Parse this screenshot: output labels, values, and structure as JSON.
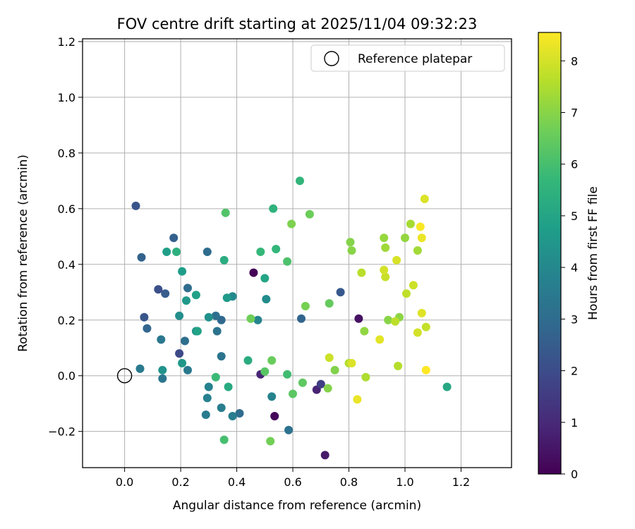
{
  "chart_data": {
    "type": "scatter",
    "title": "FOV centre drift starting at 2025/11/04 09:32:23",
    "xlabel": "Angular distance from reference (arcmin)",
    "ylabel": "Rotation from reference (arcmin)",
    "xlim": [
      -0.15,
      1.38
    ],
    "ylim": [
      -0.33,
      1.21
    ],
    "xticks": [
      "0.0",
      "0.2",
      "0.4",
      "0.6",
      "0.8",
      "1.0",
      "1.2"
    ],
    "yticks": [
      "−0.2",
      "0.0",
      "0.2",
      "0.4",
      "0.6",
      "0.8",
      "1.0",
      "1.2"
    ],
    "grid": true,
    "legend": {
      "placement": "top-right",
      "entries": [
        "Reference platepar"
      ]
    },
    "reference_point": {
      "x": 0.0,
      "y": 0.0
    },
    "colorbar": {
      "label": "Hours from first FF file",
      "range": [
        0,
        8.55
      ],
      "ticks": [
        "0",
        "1",
        "2",
        "3",
        "4",
        "5",
        "6",
        "7",
        "8"
      ],
      "colormap": "viridis",
      "colors": [
        "#440154",
        "#482878",
        "#3e4989",
        "#31688e",
        "#26828e",
        "#1f9e89",
        "#35b779",
        "#6ece58",
        "#b5de2b",
        "#fde725"
      ]
    },
    "points": [
      {
        "x": 0.46,
        "y": 0.37,
        "h": 0.05
      },
      {
        "x": 0.535,
        "y": -0.145,
        "h": 0.15
      },
      {
        "x": 0.715,
        "y": -0.285,
        "h": 0.6
      },
      {
        "x": 0.685,
        "y": -0.05,
        "h": 0.85
      },
      {
        "x": 0.835,
        "y": 0.205,
        "h": 0.4
      },
      {
        "x": 0.485,
        "y": 0.005,
        "h": 0.9
      },
      {
        "x": 0.7,
        "y": -0.03,
        "h": 1.6
      },
      {
        "x": 0.195,
        "y": 0.08,
        "h": 1.9
      },
      {
        "x": 0.12,
        "y": 0.31,
        "h": 2.1
      },
      {
        "x": 0.04,
        "y": 0.61,
        "h": 2.25
      },
      {
        "x": 0.07,
        "y": 0.21,
        "h": 2.3
      },
      {
        "x": 0.77,
        "y": 0.3,
        "h": 2.4
      },
      {
        "x": 0.145,
        "y": 0.295,
        "h": 2.5
      },
      {
        "x": 0.175,
        "y": 0.495,
        "h": 2.6
      },
      {
        "x": 0.06,
        "y": 0.425,
        "h": 2.7
      },
      {
        "x": 0.63,
        "y": 0.205,
        "h": 2.75
      },
      {
        "x": 0.08,
        "y": 0.17,
        "h": 2.8
      },
      {
        "x": 0.345,
        "y": 0.2,
        "h": 2.85
      },
      {
        "x": 0.41,
        "y": -0.135,
        "h": 3.0
      },
      {
        "x": 0.295,
        "y": 0.445,
        "h": 3.0
      },
      {
        "x": 0.225,
        "y": 0.315,
        "h": 3.05
      },
      {
        "x": 0.325,
        "y": 0.215,
        "h": 3.1
      },
      {
        "x": 0.215,
        "y": 0.125,
        "h": 3.1
      },
      {
        "x": 0.585,
        "y": -0.195,
        "h": 3.2
      },
      {
        "x": 0.345,
        "y": 0.07,
        "h": 3.3
      },
      {
        "x": 0.33,
        "y": 0.16,
        "h": 3.3
      },
      {
        "x": 0.135,
        "y": -0.01,
        "h": 3.35
      },
      {
        "x": 0.13,
        "y": 0.13,
        "h": 3.4
      },
      {
        "x": 0.225,
        "y": 0.02,
        "h": 3.45
      },
      {
        "x": 0.055,
        "y": 0.025,
        "h": 3.5
      },
      {
        "x": 0.29,
        "y": -0.14,
        "h": 3.55
      },
      {
        "x": 0.385,
        "y": -0.145,
        "h": 3.6
      },
      {
        "x": 0.345,
        "y": -0.115,
        "h": 3.65
      },
      {
        "x": 0.295,
        "y": -0.08,
        "h": 3.75
      },
      {
        "x": 0.3,
        "y": -0.04,
        "h": 3.8
      },
      {
        "x": 0.525,
        "y": -0.075,
        "h": 3.85
      },
      {
        "x": 0.475,
        "y": 0.2,
        "h": 3.9
      },
      {
        "x": 0.385,
        "y": 0.285,
        "h": 4.05
      },
      {
        "x": 0.505,
        "y": 0.275,
        "h": 4.15
      },
      {
        "x": 0.195,
        "y": 0.215,
        "h": 4.2
      },
      {
        "x": 0.3,
        "y": 0.21,
        "h": 4.3
      },
      {
        "x": 0.255,
        "y": 0.16,
        "h": 4.35
      },
      {
        "x": 0.135,
        "y": 0.02,
        "h": 4.4
      },
      {
        "x": 0.205,
        "y": 0.045,
        "h": 4.5
      },
      {
        "x": 0.22,
        "y": 0.27,
        "h": 4.55
      },
      {
        "x": 0.365,
        "y": 0.28,
        "h": 4.6
      },
      {
        "x": 0.205,
        "y": 0.375,
        "h": 4.7
      },
      {
        "x": 0.15,
        "y": 0.445,
        "h": 4.8
      },
      {
        "x": 0.255,
        "y": 0.29,
        "h": 4.85
      },
      {
        "x": 0.26,
        "y": 0.16,
        "h": 4.9
      },
      {
        "x": 0.5,
        "y": 0.35,
        "h": 5.0
      },
      {
        "x": 1.15,
        "y": -0.04,
        "h": 5.1
      },
      {
        "x": 0.37,
        "y": -0.04,
        "h": 5.2
      },
      {
        "x": 0.44,
        "y": 0.055,
        "h": 5.25
      },
      {
        "x": 0.355,
        "y": 0.415,
        "h": 5.3
      },
      {
        "x": 0.185,
        "y": 0.445,
        "h": 5.4
      },
      {
        "x": 0.53,
        "y": 0.6,
        "h": 5.5
      },
      {
        "x": 0.625,
        "y": 0.7,
        "h": 5.6
      },
      {
        "x": 0.54,
        "y": 0.455,
        "h": 5.65
      },
      {
        "x": 0.485,
        "y": 0.445,
        "h": 5.7
      },
      {
        "x": 0.325,
        "y": -0.005,
        "h": 5.8
      },
      {
        "x": 0.58,
        "y": 0.005,
        "h": 5.9
      },
      {
        "x": 0.355,
        "y": -0.23,
        "h": 6.0
      },
      {
        "x": 0.58,
        "y": 0.41,
        "h": 6.1
      },
      {
        "x": 0.36,
        "y": 0.585,
        "h": 6.2
      },
      {
        "x": 0.5,
        "y": 0.015,
        "h": 6.3
      },
      {
        "x": 0.6,
        "y": -0.065,
        "h": 6.35
      },
      {
        "x": 0.635,
        "y": -0.025,
        "h": 6.4
      },
      {
        "x": 0.73,
        "y": 0.26,
        "h": 6.5
      },
      {
        "x": 0.525,
        "y": 0.055,
        "h": 6.55
      },
      {
        "x": 0.66,
        "y": 0.58,
        "h": 6.6
      },
      {
        "x": 0.45,
        "y": 0.205,
        "h": 6.65
      },
      {
        "x": 0.52,
        "y": -0.235,
        "h": 6.7
      },
      {
        "x": 0.645,
        "y": 0.25,
        "h": 6.75
      },
      {
        "x": 0.595,
        "y": 0.545,
        "h": 6.85
      },
      {
        "x": 0.75,
        "y": 0.02,
        "h": 6.9
      },
      {
        "x": 0.725,
        "y": -0.045,
        "h": 6.95
      },
      {
        "x": 0.805,
        "y": 0.48,
        "h": 6.95
      },
      {
        "x": 0.81,
        "y": 0.45,
        "h": 7.0
      },
      {
        "x": 0.94,
        "y": 0.2,
        "h": 7.0
      },
      {
        "x": 0.98,
        "y": 0.21,
        "h": 7.05
      },
      {
        "x": 0.855,
        "y": 0.16,
        "h": 7.1
      },
      {
        "x": 1.0,
        "y": 0.495,
        "h": 7.15
      },
      {
        "x": 0.925,
        "y": 0.495,
        "h": 7.2
      },
      {
        "x": 0.93,
        "y": 0.46,
        "h": 7.3
      },
      {
        "x": 1.045,
        "y": 0.45,
        "h": 7.35
      },
      {
        "x": 1.02,
        "y": 0.545,
        "h": 7.4
      },
      {
        "x": 0.86,
        "y": -0.005,
        "h": 7.5
      },
      {
        "x": 0.8,
        "y": 0.045,
        "h": 7.55
      },
      {
        "x": 0.975,
        "y": 0.035,
        "h": 7.6
      },
      {
        "x": 0.845,
        "y": 0.37,
        "h": 7.65
      },
      {
        "x": 0.965,
        "y": 0.195,
        "h": 7.7
      },
      {
        "x": 1.005,
        "y": 0.295,
        "h": 7.75
      },
      {
        "x": 1.075,
        "y": 0.175,
        "h": 7.8
      },
      {
        "x": 0.93,
        "y": 0.355,
        "h": 7.85
      },
      {
        "x": 0.73,
        "y": 0.065,
        "h": 7.9
      },
      {
        "x": 1.03,
        "y": 0.325,
        "h": 7.9
      },
      {
        "x": 1.045,
        "y": 0.155,
        "h": 8.0
      },
      {
        "x": 0.925,
        "y": 0.38,
        "h": 8.0
      },
      {
        "x": 0.97,
        "y": 0.415,
        "h": 8.05
      },
      {
        "x": 0.81,
        "y": 0.045,
        "h": 8.1
      },
      {
        "x": 1.07,
        "y": 0.635,
        "h": 8.1
      },
      {
        "x": 1.06,
        "y": 0.225,
        "h": 8.15
      },
      {
        "x": 0.91,
        "y": 0.13,
        "h": 8.2
      },
      {
        "x": 0.83,
        "y": -0.085,
        "h": 8.3
      },
      {
        "x": 1.06,
        "y": 0.495,
        "h": 8.3
      },
      {
        "x": 1.055,
        "y": 0.535,
        "h": 8.5
      },
      {
        "x": 1.075,
        "y": 0.02,
        "h": 8.55
      }
    ]
  }
}
